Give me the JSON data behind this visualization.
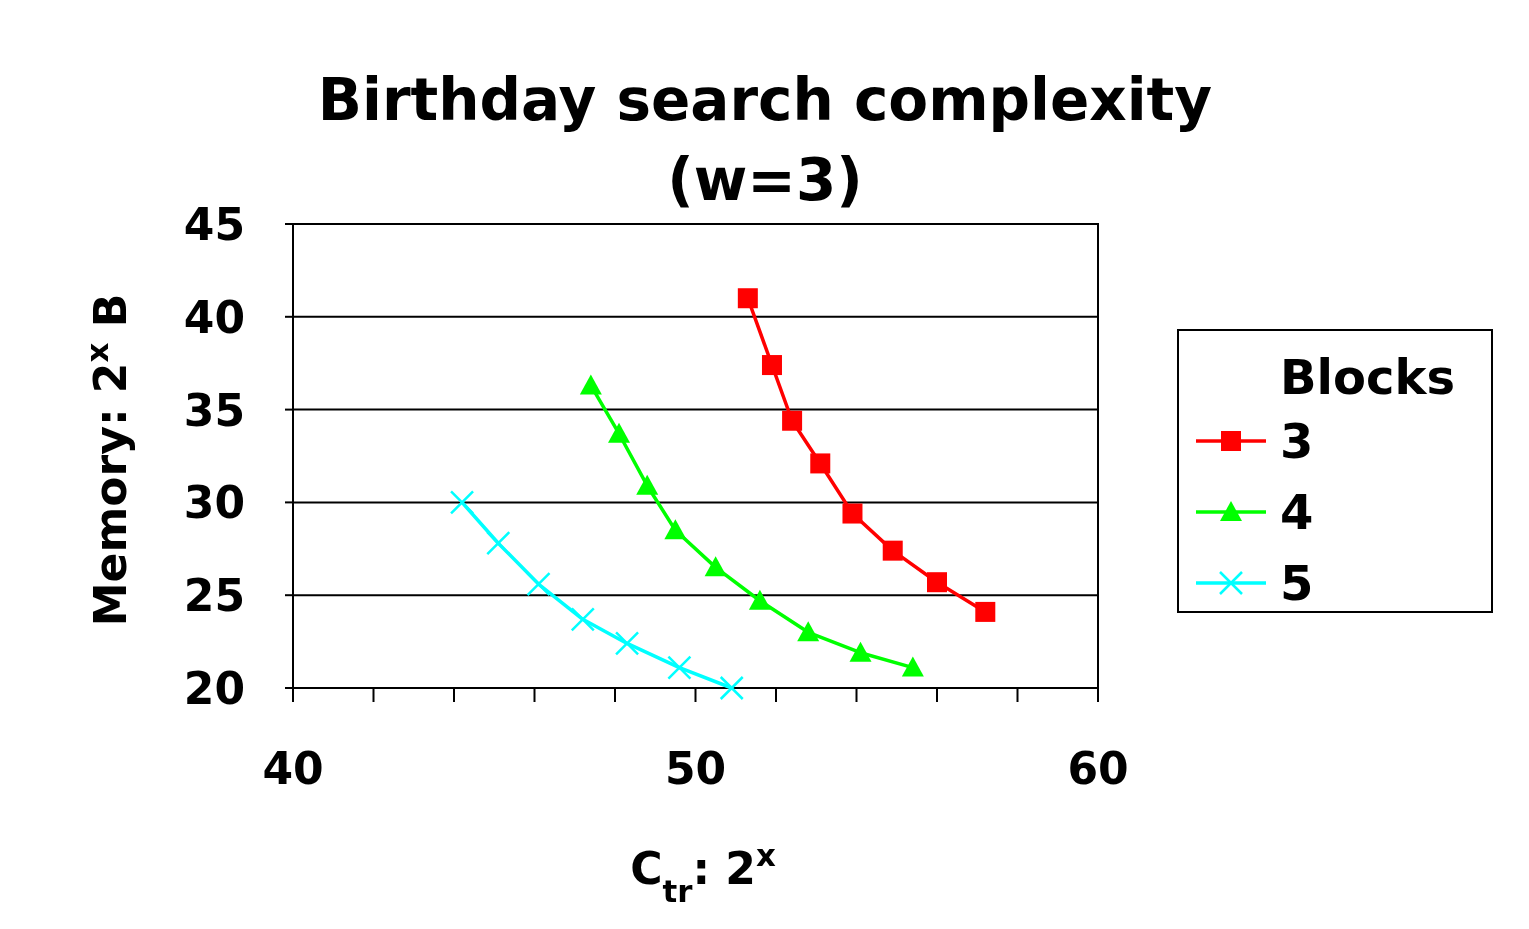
{
  "chart_data": {
    "type": "line",
    "title": "Birthday search complexity (w=3)",
    "xlabel": "C$_{tr}$: 2$^{x}$",
    "ylabel": "Memory: 2$^{x}$ B",
    "legend_title": "Blocks",
    "legend": "right",
    "grid": "y",
    "line_style": "solid",
    "xlim": [
      40,
      60
    ],
    "xticks": [
      40,
      {
        "value": 42,
        "label": null
      },
      {
        "value": 44,
        "label": null
      },
      {
        "value": 46,
        "label": null
      },
      {
        "value": 48,
        "label": null
      },
      50,
      {
        "value": 52,
        "label": null
      },
      {
        "value": 54,
        "label": null
      },
      {
        "value": 56,
        "label": null
      },
      {
        "value": 58,
        "label": null
      },
      60
    ],
    "ylim": [
      20,
      45
    ],
    "yticks": [
      20,
      25,
      30,
      35,
      40,
      45
    ],
    "series": [
      {
        "name": "3",
        "color": "#ff0000",
        "marker": "square",
        "x": [
          51.3,
          51.9,
          52.4,
          53.1,
          53.9,
          54.9,
          56.0,
          57.2
        ],
        "values": [
          41.0,
          37.4,
          34.4,
          32.1,
          29.4,
          27.4,
          25.7,
          24.1
        ]
      },
      {
        "name": "4",
        "color": "#00ff00",
        "marker": "triangle",
        "x": [
          47.4,
          48.1,
          48.8,
          49.5,
          50.5,
          51.6,
          52.8,
          54.1,
          55.4
        ],
        "values": [
          36.3,
          33.7,
          30.9,
          28.5,
          26.5,
          24.7,
          23.0,
          21.9,
          21.1
        ]
      },
      {
        "name": "5",
        "color": "#00ffff",
        "marker": "cross",
        "x": [
          44.2,
          45.1,
          46.1,
          47.2,
          48.3,
          49.6,
          50.9
        ],
        "values": [
          30.0,
          27.8,
          25.6,
          23.7,
          22.4,
          21.1,
          20.0
        ]
      }
    ]
  }
}
